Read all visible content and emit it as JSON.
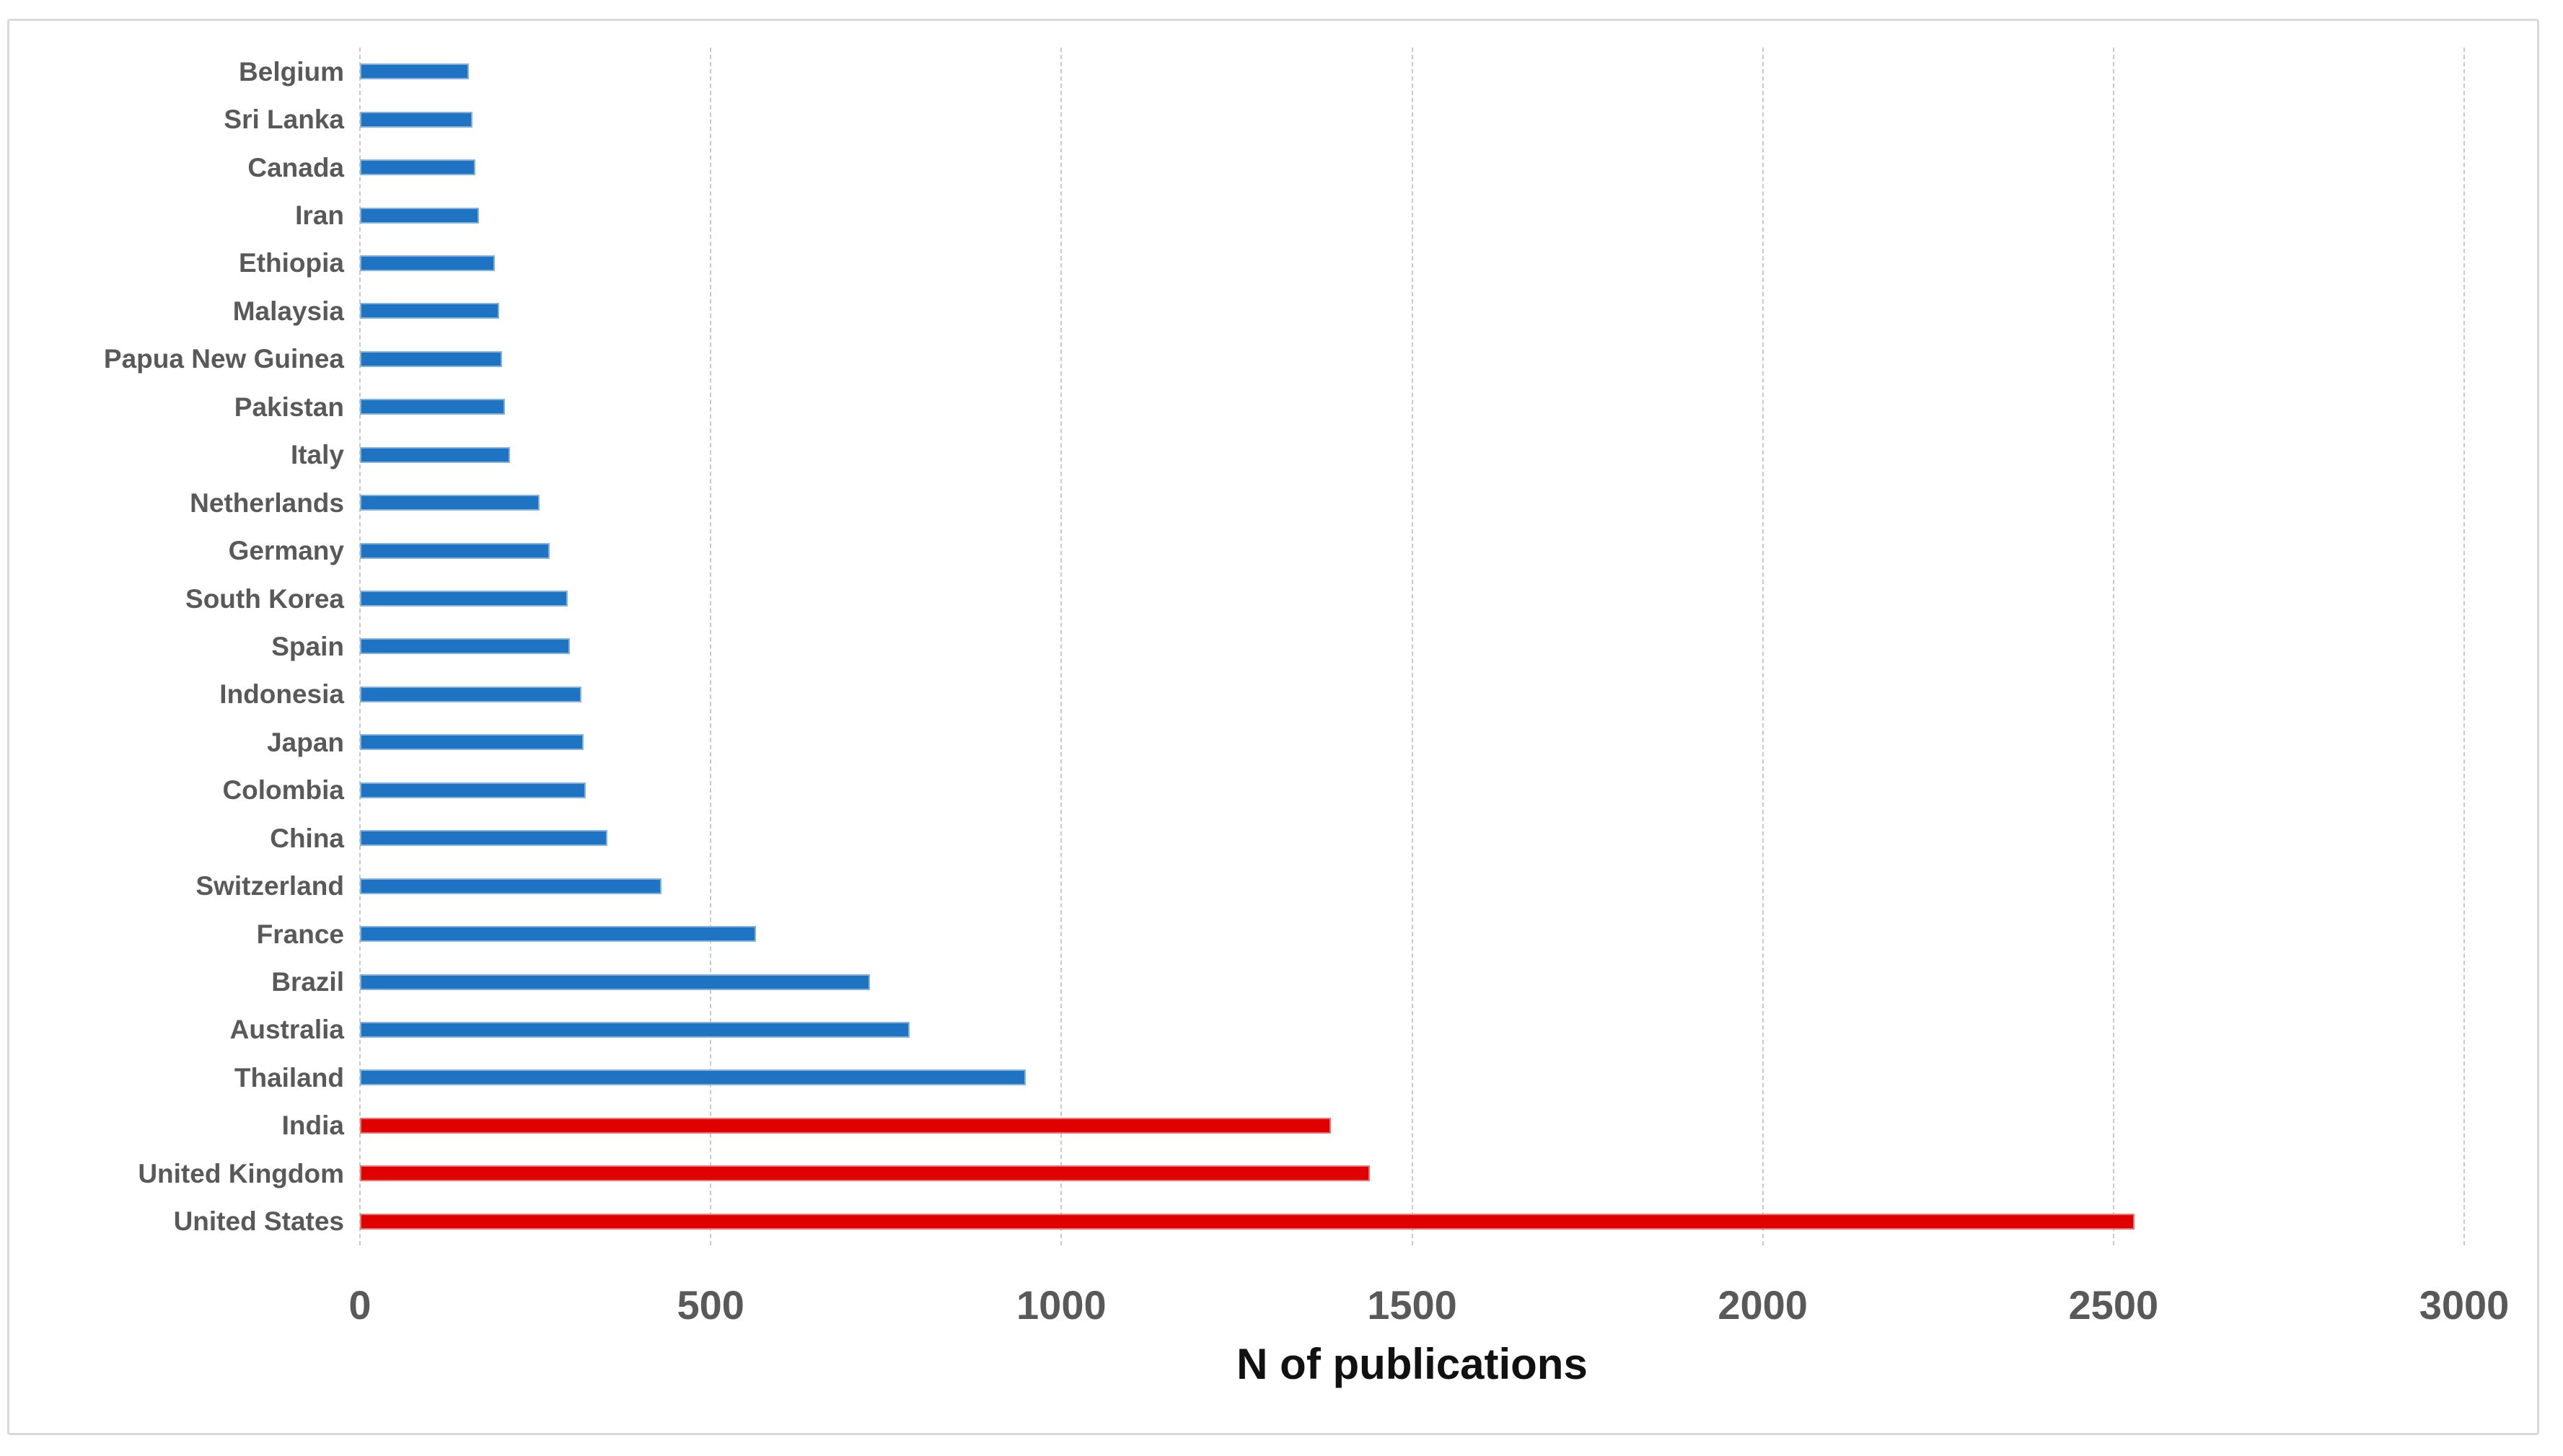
{
  "chart_data": {
    "type": "bar",
    "orientation": "horizontal",
    "title": "",
    "xlabel": "N of publications",
    "ylabel": "",
    "categories": [
      "Belgium",
      "Sri Lanka",
      "Canada",
      "Iran",
      "Ethiopia",
      "Malaysia",
      "Papua New Guinea",
      "Pakistan",
      "Italy",
      "Netherlands",
      "Germany",
      "South Korea",
      "Spain",
      "Indonesia",
      "Japan",
      "Colombia",
      "China",
      "Switzerland",
      "France",
      "Brazil",
      "Australia",
      "Thailand",
      "India",
      "United Kingdom",
      "United States"
    ],
    "values": [
      155,
      160,
      165,
      170,
      192,
      198,
      203,
      207,
      214,
      256,
      270,
      296,
      299,
      316,
      319,
      322,
      353,
      430,
      565,
      727,
      784,
      949,
      1384,
      1440,
      2530
    ],
    "highlighted_categories": [
      "India",
      "United Kingdom",
      "United States"
    ],
    "colors": {
      "default_bar": "#1E73C2",
      "highlight_bar": "#E00000",
      "label_text": "#595959",
      "tick_text": "#595959",
      "axis_title_text": "#111111",
      "gridline": "#c9c9c9",
      "canvas_border": "#d9d9d9"
    },
    "xlim": [
      0,
      3000
    ],
    "xticks": [
      0,
      500,
      1000,
      1500,
      2000,
      2500,
      3000
    ],
    "grid": "vertical-dashed",
    "legend": "none"
  }
}
